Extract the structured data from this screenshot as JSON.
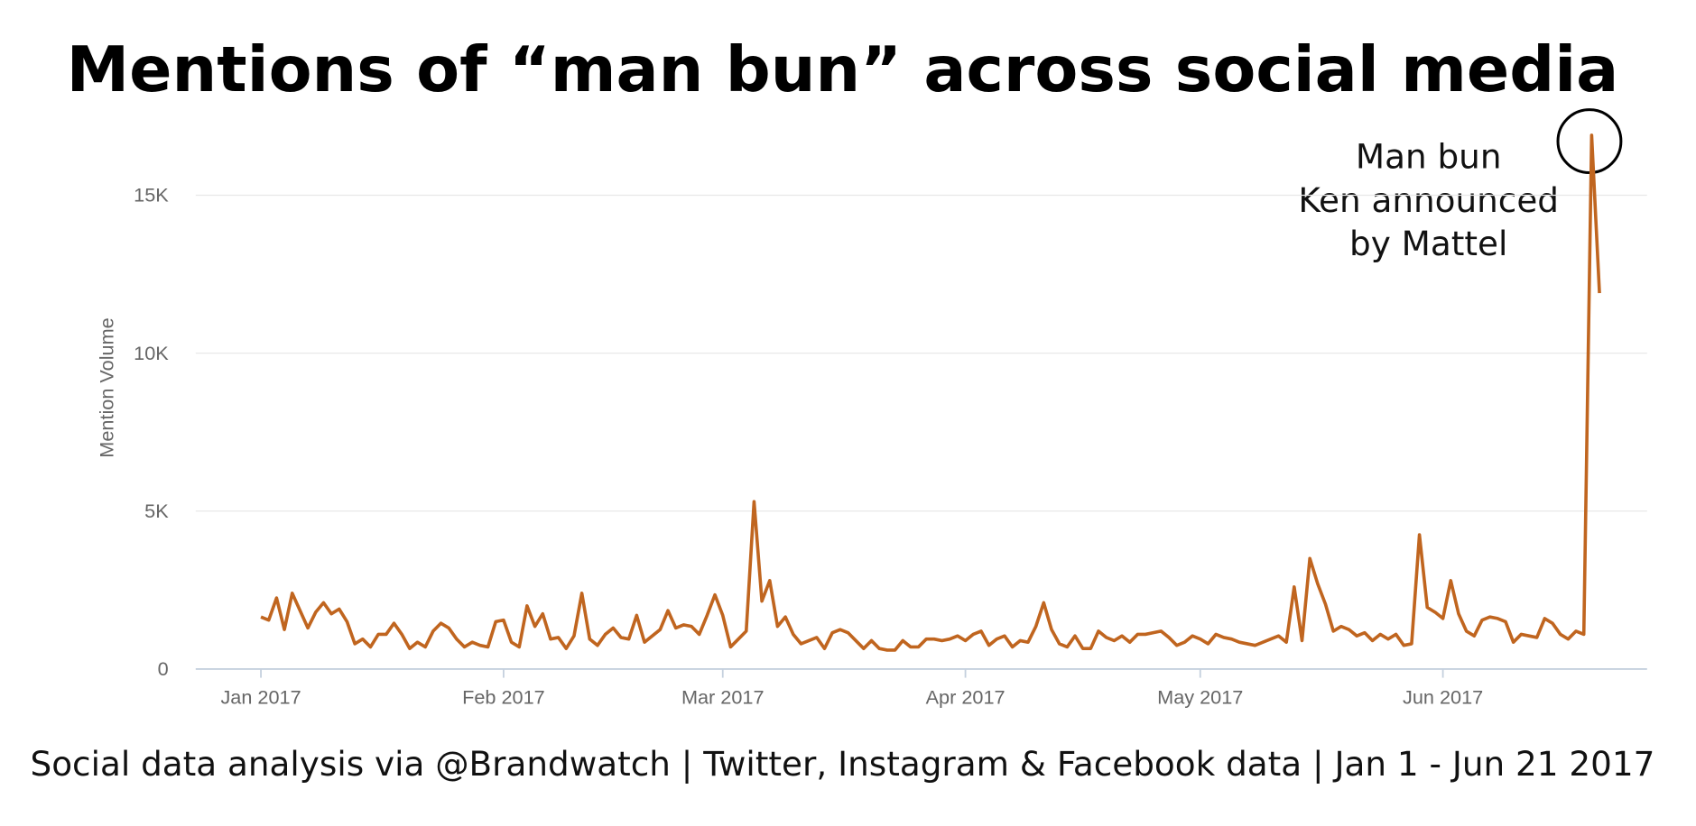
{
  "chart_data": {
    "type": "line",
    "title": "Mentions of “man bun” across social media",
    "footer": "Social data analysis via @Brandwatch | Twitter, Instagram & Facebook data | Jan 1 - Jun 21 2017",
    "y_label": "Mention Volume",
    "annotation": [
      "Man bun",
      "Ken announced",
      "by Mattel"
    ],
    "color": "#c0651f",
    "grid": true,
    "xlim": [
      -8.33,
      177.08
    ],
    "xticks": [
      {
        "value": 0,
        "label": "Jan 2017"
      },
      {
        "value": 31,
        "label": "Feb 2017"
      },
      {
        "value": 59,
        "label": "Mar 2017"
      },
      {
        "value": 90,
        "label": "Apr 2017"
      },
      {
        "value": 120,
        "label": "May 2017"
      },
      {
        "value": 151,
        "label": "Jun 2017"
      }
    ],
    "ylim": [
      0,
      17500
    ],
    "yticks": [
      0,
      {
        "value": 5000,
        "label": "5K"
      },
      {
        "value": 10000,
        "label": "10K"
      },
      {
        "value": 15000,
        "label": "15K"
      }
    ],
    "values": [
      1650,
      1550,
      2250,
      1250,
      2400,
      1850,
      1300,
      1800,
      2100,
      1750,
      1900,
      1500,
      800,
      950,
      700,
      1100,
      1100,
      1450,
      1100,
      650,
      850,
      700,
      1200,
      1450,
      1300,
      950,
      700,
      850,
      750,
      700,
      1500,
      1550,
      850,
      700,
      2000,
      1350,
      1750,
      950,
      1000,
      650,
      1050,
      2400,
      950,
      750,
      1100,
      1300,
      1000,
      950,
      1700,
      850,
      1050,
      1250,
      1850,
      1300,
      1400,
      1350,
      1100,
      1700,
      2350,
      1700,
      700,
      950,
      1200,
      5300,
      2150,
      2800,
      1350,
      1650,
      1100,
      800,
      900,
      1000,
      650,
      1150,
      1250,
      1150,
      900,
      650,
      900,
      650,
      600,
      600,
      900,
      700,
      700,
      950,
      950,
      900,
      950,
      1050,
      900,
      1100,
      1200,
      750,
      950,
      1050,
      700,
      900,
      850,
      1350,
      2100,
      1250,
      800,
      700,
      1050,
      650,
      650,
      1200,
      1000,
      900,
      1050,
      850,
      1100,
      1100,
      1150,
      1200,
      1000,
      750,
      850,
      1050,
      950,
      800,
      1100,
      1000,
      950,
      850,
      800,
      750,
      850,
      950,
      1050,
      850,
      2600,
      900,
      3500,
      2700,
      2050,
      1200,
      1350,
      1250,
      1050,
      1150,
      900,
      1100,
      950,
      1100,
      750,
      800,
      4250,
      1950,
      1800,
      1600,
      2800,
      1750,
      1200,
      1050,
      1550,
      1650,
      1600,
      1500,
      850,
      1100,
      1050,
      1000,
      1600,
      1450,
      1100,
      950,
      1200,
      1100,
      16900,
      11900
    ]
  }
}
